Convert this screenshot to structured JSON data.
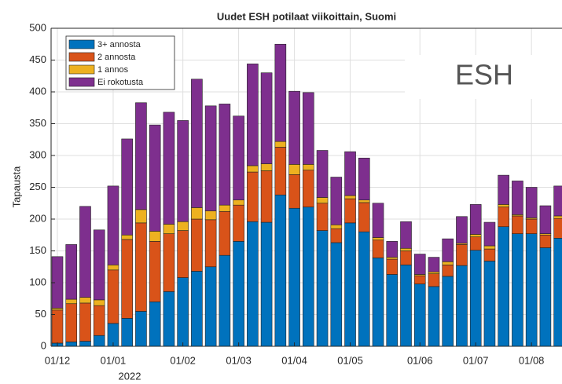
{
  "chart_data": {
    "type": "stacked_bar",
    "title": "Uudet ESH potilaat viikoittain, Suomi",
    "y_label": "Tapausta",
    "x_sublabel": "2022",
    "annotation": "ESH",
    "categories": [
      "01/12",
      null,
      null,
      null,
      "01/01",
      null,
      null,
      null,
      null,
      "01/02",
      null,
      null,
      null,
      "01/03",
      null,
      null,
      null,
      "01/04",
      null,
      null,
      null,
      "01/05",
      null,
      null,
      null,
      null,
      "01/06",
      null,
      null,
      null,
      "01/07",
      null,
      null,
      null,
      "01/08",
      null,
      null
    ],
    "series": [
      {
        "name": "3+ annosta",
        "color": "#0072BD",
        "values": [
          5,
          7,
          8,
          17,
          36,
          44,
          55,
          70,
          86,
          108,
          118,
          125,
          143,
          165,
          196,
          195,
          238,
          217,
          219,
          182,
          163,
          194,
          180,
          139,
          113,
          128,
          98,
          94,
          110,
          127,
          151,
          134,
          188,
          177,
          177,
          155,
          170
        ]
      },
      {
        "name": "2 annosta",
        "color": "#D95319",
        "values": [
          52,
          60,
          60,
          47,
          84,
          124,
          139,
          95,
          91,
          74,
          82,
          74,
          69,
          57,
          78,
          81,
          75,
          53,
          58,
          43,
          22,
          38,
          46,
          28,
          24,
          22,
          13,
          20,
          18,
          33,
          21,
          19,
          31,
          28,
          23,
          20,
          31
        ]
      },
      {
        "name": "1 annos",
        "color": "#EDB120",
        "values": [
          3,
          7,
          9,
          9,
          8,
          7,
          21,
          16,
          15,
          14,
          18,
          14,
          10,
          8,
          10,
          11,
          9,
          16,
          9,
          9,
          6,
          5,
          4,
          4,
          3,
          4,
          2,
          3,
          5,
          2,
          4,
          5,
          4,
          2,
          2,
          2,
          4
        ]
      },
      {
        "name": "Ei rokotusta",
        "color": "#7E2F8E",
        "values": [
          81,
          86,
          143,
          110,
          124,
          151,
          168,
          167,
          176,
          159,
          202,
          165,
          159,
          132,
          160,
          143,
          153,
          115,
          113,
          74,
          75,
          69,
          66,
          54,
          25,
          42,
          32,
          23,
          36,
          42,
          47,
          37,
          46,
          53,
          48,
          44,
          47
        ]
      }
    ],
    "ylim": [
      0,
      500
    ],
    "yticks": [
      0,
      50,
      100,
      150,
      200,
      250,
      300,
      350,
      400,
      450,
      500
    ],
    "grid": true,
    "legend": "upper left"
  }
}
